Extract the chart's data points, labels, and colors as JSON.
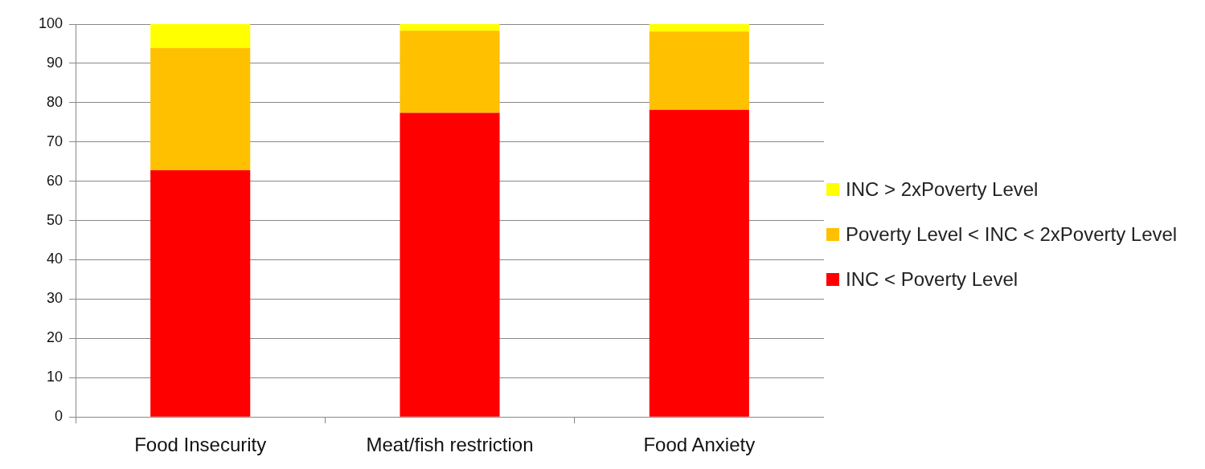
{
  "chart_data": {
    "type": "bar",
    "stacked": true,
    "categories": [
      "Food Insecurity",
      "Meat/fish restriction",
      "Food Anxiety"
    ],
    "series": [
      {
        "name": "INC < Poverty Level",
        "color": "#ff0000",
        "values": [
          62.8,
          77.4,
          78.2
        ]
      },
      {
        "name": "Poverty Level < INC < 2xPoverty Level",
        "color": "#ffc000",
        "values": [
          31.1,
          20.9,
          19.9
        ]
      },
      {
        "name": "INC > 2xPoverty Level",
        "color": "#ffff00",
        "values": [
          6.1,
          1.7,
          1.9
        ]
      }
    ],
    "ylim": [
      0,
      100
    ],
    "yticks": [
      0,
      10,
      20,
      30,
      40,
      50,
      60,
      70,
      80,
      90,
      100
    ],
    "grid": "y",
    "legend": "right"
  }
}
